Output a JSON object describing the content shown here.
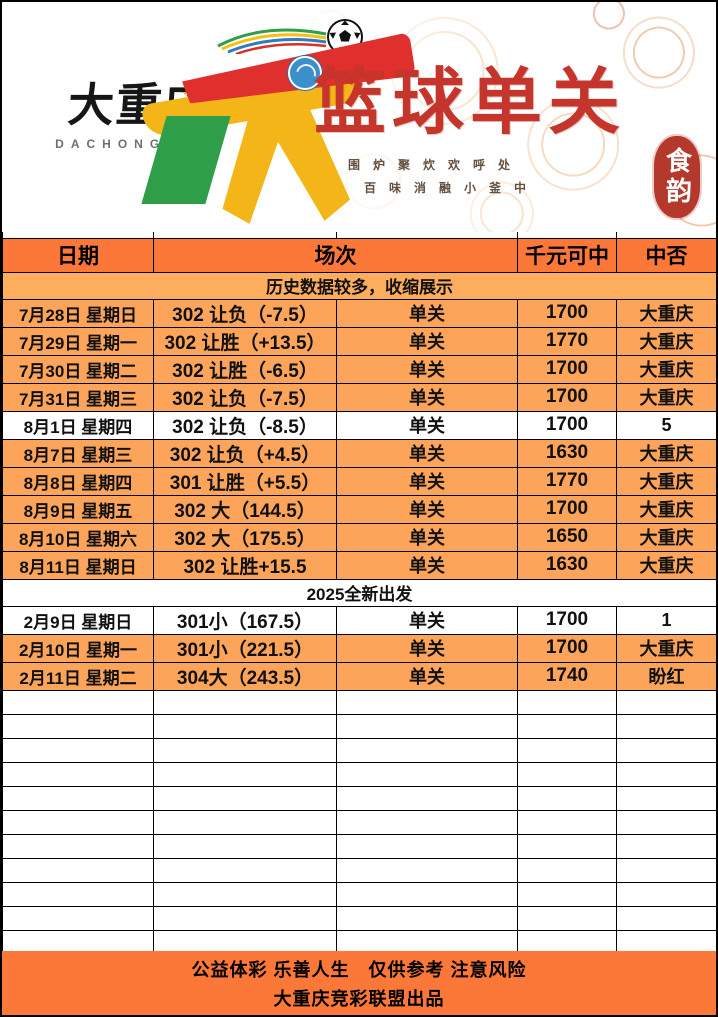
{
  "header": {
    "brand_name": "大重庆",
    "brand_latin": "DACHONGQING",
    "title": "篮球单关",
    "subtitle_line1": "围炉聚炊欢呼处",
    "subtitle_line2": "百味消融小釜中",
    "seal_text": "食韵"
  },
  "columns": {
    "date": "日期",
    "match": "场次",
    "win": "千元可中",
    "hit": "中否"
  },
  "table": {
    "rows": [
      {
        "kind": "note",
        "text": "历史数据较多，收缩展示",
        "bg": "note"
      },
      {
        "kind": "data",
        "date": "7月28日 星期日",
        "match": "302 让负（-7.5）",
        "pass": "单关",
        "win": "1700",
        "result": "大重庆",
        "bg": "orange"
      },
      {
        "kind": "data",
        "date": "7月29日 星期一",
        "match": "302 让胜（+13.5）",
        "pass": "单关",
        "win": "1770",
        "result": "大重庆",
        "bg": "orange"
      },
      {
        "kind": "data",
        "date": "7月30日 星期二",
        "match": "302 让胜（-6.5）",
        "pass": "单关",
        "win": "1700",
        "result": "大重庆",
        "bg": "orange"
      },
      {
        "kind": "data",
        "date": "7月31日 星期三",
        "match": "302 让负（-7.5）",
        "pass": "单关",
        "win": "1700",
        "result": "大重庆",
        "bg": "orange"
      },
      {
        "kind": "data",
        "date": "8月1日 星期四",
        "match": "302 让负（-8.5）",
        "pass": "单关",
        "win": "1700",
        "result": "5",
        "bg": "white"
      },
      {
        "kind": "data",
        "date": "8月7日 星期三",
        "match": "302 让负（+4.5）",
        "pass": "单关",
        "win": "1630",
        "result": "大重庆",
        "bg": "orange"
      },
      {
        "kind": "data",
        "date": "8月8日 星期四",
        "match": "301 让胜（+5.5）",
        "pass": "单关",
        "win": "1770",
        "result": "大重庆",
        "bg": "orange"
      },
      {
        "kind": "data",
        "date": "8月9日 星期五",
        "match": "302 大（144.5）",
        "pass": "单关",
        "win": "1700",
        "result": "大重庆",
        "bg": "orange"
      },
      {
        "kind": "data",
        "date": "8月10日 星期六",
        "match": "302 大（175.5）",
        "pass": "单关",
        "win": "1650",
        "result": "大重庆",
        "bg": "orange"
      },
      {
        "kind": "data",
        "date": "8月11日 星期日",
        "match": "302 让胜+15.5",
        "pass": "单关",
        "win": "1630",
        "result": "大重庆",
        "bg": "orange"
      },
      {
        "kind": "note",
        "text": "2025全新出发",
        "bg": "white"
      },
      {
        "kind": "data",
        "date": "2月9日 星期日",
        "match": "301小（167.5）",
        "pass": "单关",
        "win": "1700",
        "result": "1",
        "bg": "white"
      },
      {
        "kind": "data",
        "date": "2月10日 星期一",
        "match": "301小（221.5）",
        "pass": "单关",
        "win": "1700",
        "result": "大重庆",
        "bg": "orange"
      },
      {
        "kind": "data",
        "date": "2月11日 星期二",
        "match": "304大（243.5）",
        "pass": "单关",
        "win": "1740",
        "result": "盼红",
        "bg": "orange"
      }
    ],
    "empty_row_count": 12
  },
  "footer": {
    "line1": "公益体彩 乐善人生　仅供参考 注意风险",
    "line2": "大重庆竞彩联盟出品"
  },
  "colors": {
    "header_orange": "#FB7839",
    "row_orange": "#FCA45A",
    "note_orange": "#FDAD5E",
    "title_red": "#C5352B",
    "seal_red": "#B5382C"
  }
}
